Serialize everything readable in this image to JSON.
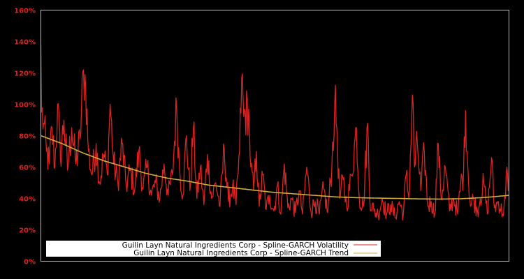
{
  "chart_data": {
    "type": "line",
    "title": "",
    "xlabel": "",
    "ylabel": "",
    "ylim": [
      0,
      160
    ],
    "y_ticks": [
      "0%",
      "20%",
      "40%",
      "60%",
      "80%",
      "100%",
      "120%",
      "140%",
      "160%"
    ],
    "y_tick_values": [
      0,
      20,
      40,
      60,
      80,
      100,
      120,
      140,
      160
    ],
    "grid": false,
    "legend_position": "lower-left",
    "background": "#000000",
    "axis_color": "#c0c0c0",
    "tick_label_color": "#dd2222",
    "x_points": 670,
    "series": [
      {
        "name": "Guilin Layn Natural Ingredients Corp - Spline-GARCH Volatility",
        "color": "#dd2222",
        "key_points": [
          [
            0,
            138
          ],
          [
            1,
            95
          ],
          [
            4,
            88
          ],
          [
            8,
            70
          ],
          [
            12,
            62
          ],
          [
            16,
            85
          ],
          [
            20,
            60
          ],
          [
            24,
            100
          ],
          [
            28,
            65
          ],
          [
            33,
            90
          ],
          [
            38,
            58
          ],
          [
            44,
            85
          ],
          [
            50,
            62
          ],
          [
            56,
            78
          ],
          [
            61,
            122
          ],
          [
            64,
            112
          ],
          [
            68,
            70
          ],
          [
            73,
            55
          ],
          [
            79,
            75
          ],
          [
            84,
            50
          ],
          [
            90,
            68
          ],
          [
            95,
            55
          ],
          [
            99,
            100
          ],
          [
            104,
            62
          ],
          [
            110,
            50
          ],
          [
            116,
            75
          ],
          [
            122,
            48
          ],
          [
            128,
            58
          ],
          [
            134,
            45
          ],
          [
            140,
            70
          ],
          [
            146,
            46
          ],
          [
            152,
            60
          ],
          [
            158,
            42
          ],
          [
            164,
            50
          ],
          [
            170,
            40
          ],
          [
            176,
            62
          ],
          [
            182,
            42
          ],
          [
            188,
            55
          ],
          [
            194,
            99
          ],
          [
            198,
            60
          ],
          [
            203,
            42
          ],
          [
            208,
            80
          ],
          [
            213,
            45
          ],
          [
            218,
            85
          ],
          [
            223,
            40
          ],
          [
            228,
            60
          ],
          [
            233,
            36
          ],
          [
            238,
            68
          ],
          [
            244,
            40
          ],
          [
            250,
            50
          ],
          [
            256,
            35
          ],
          [
            262,
            72
          ],
          [
            268,
            38
          ],
          [
            274,
            48
          ],
          [
            279,
            36
          ],
          [
            284,
            70
          ],
          [
            287,
            117
          ],
          [
            290,
            92
          ],
          [
            297,
            97
          ],
          [
            300,
            60
          ],
          [
            304,
            45
          ],
          [
            308,
            70
          ],
          [
            312,
            35
          ],
          [
            317,
            55
          ],
          [
            322,
            33
          ],
          [
            327,
            42
          ],
          [
            333,
            32
          ],
          [
            338,
            48
          ],
          [
            343,
            30
          ],
          [
            348,
            62
          ],
          [
            353,
            34
          ],
          [
            358,
            40
          ],
          [
            364,
            31
          ],
          [
            369,
            45
          ],
          [
            374,
            30
          ],
          [
            380,
            60
          ],
          [
            386,
            32
          ],
          [
            392,
            38
          ],
          [
            398,
            30
          ],
          [
            404,
            46
          ],
          [
            410,
            31
          ],
          [
            416,
            62
          ],
          [
            420,
            101
          ],
          [
            423,
            85
          ],
          [
            427,
            40
          ],
          [
            432,
            52
          ],
          [
            437,
            35
          ],
          [
            444,
            55
          ],
          [
            451,
            85
          ],
          [
            455,
            40
          ],
          [
            461,
            35
          ],
          [
            467,
            88
          ],
          [
            470,
            40
          ],
          [
            476,
            32
          ],
          [
            482,
            30
          ],
          [
            488,
            40
          ],
          [
            494,
            30
          ],
          [
            500,
            36
          ],
          [
            506,
            28
          ],
          [
            512,
            38
          ],
          [
            518,
            30
          ],
          [
            522,
            55
          ],
          [
            526,
            40
          ],
          [
            531,
            106
          ],
          [
            534,
            60
          ],
          [
            538,
            75
          ],
          [
            543,
            45
          ],
          [
            548,
            70
          ],
          [
            553,
            35
          ],
          [
            558,
            38
          ],
          [
            563,
            30
          ],
          [
            568,
            75
          ],
          [
            572,
            40
          ],
          [
            578,
            60
          ],
          [
            584,
            32
          ],
          [
            590,
            40
          ],
          [
            596,
            30
          ],
          [
            600,
            50
          ],
          [
            604,
            55
          ],
          [
            607,
            96
          ],
          [
            610,
            62
          ],
          [
            614,
            35
          ],
          [
            618,
            40
          ],
          [
            624,
            32
          ],
          [
            628,
            40
          ],
          [
            633,
            50
          ],
          [
            638,
            30
          ],
          [
            644,
            66
          ],
          [
            648,
            34
          ],
          [
            654,
            38
          ],
          [
            660,
            30
          ],
          [
            664,
            40
          ],
          [
            666,
            60
          ],
          [
            668,
            45
          ],
          [
            669,
            55
          ]
        ]
      },
      {
        "name": "Guilin Layn Natural Ingredients Corp - Spline-GARCH Trend",
        "color": "#d4aa3a",
        "key_points": [
          [
            0,
            80
          ],
          [
            30,
            75
          ],
          [
            60,
            69
          ],
          [
            90,
            64
          ],
          [
            120,
            60
          ],
          [
            150,
            56
          ],
          [
            180,
            53
          ],
          [
            210,
            51
          ],
          [
            240,
            48.5
          ],
          [
            270,
            47
          ],
          [
            300,
            45.5
          ],
          [
            330,
            44
          ],
          [
            360,
            43
          ],
          [
            390,
            42
          ],
          [
            420,
            41
          ],
          [
            450,
            40.5
          ],
          [
            480,
            40.2
          ],
          [
            510,
            40
          ],
          [
            540,
            39.7
          ],
          [
            570,
            39.6
          ],
          [
            600,
            39.8
          ],
          [
            630,
            40.5
          ],
          [
            650,
            41.2
          ],
          [
            669,
            42
          ]
        ]
      }
    ]
  },
  "legend": {
    "items": [
      {
        "label": "Guilin Layn Natural Ingredients Corp - Spline-GARCH Volatility",
        "color": "#dd2222"
      },
      {
        "label": "Guilin Layn Natural Ingredients Corp - Spline-GARCH Trend",
        "color": "#d4aa3a"
      }
    ]
  }
}
